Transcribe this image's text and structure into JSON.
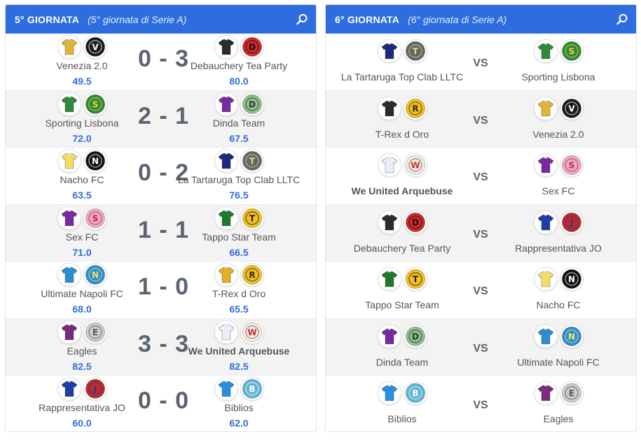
{
  "round5": {
    "title": "5° GIORNATA",
    "subtitle": "(5° giornata di Serie A)",
    "matches": [
      {
        "home": {
          "name": "Venezia 2.0",
          "points": "49.5",
          "shirt": "#e0b53a",
          "logo": "venezia"
        },
        "score": "0 - 3",
        "away": {
          "name": "Debauchery Tea Party",
          "points": "80.0",
          "shirt": "#2b2b2b",
          "logo": "debauchery"
        }
      },
      {
        "home": {
          "name": "Sporting Lisbona",
          "points": "72.0",
          "shirt": "#2f8a3a",
          "logo": "sporting"
        },
        "score": "2 - 1",
        "away": {
          "name": "Dinda Team",
          "points": "67.5",
          "shirt": "#7a2aa0",
          "logo": "dinda"
        }
      },
      {
        "home": {
          "name": "Nacho FC",
          "points": "63.5",
          "shirt": "#f2dc6a",
          "logo": "nacho"
        },
        "score": "0 - 2",
        "away": {
          "name": "La Tartaruga Top Clab LLTC",
          "points": "76.5",
          "shirt": "#1b2a7a",
          "logo": "tartaruga"
        }
      },
      {
        "home": {
          "name": "Sex FC",
          "points": "71.0",
          "shirt": "#7a2aa0",
          "logo": "sexfc"
        },
        "score": "1 - 1",
        "away": {
          "name": "Tappo Star Team",
          "points": "66.5",
          "shirt": "#1e7a2a",
          "logo": "tappo"
        }
      },
      {
        "home": {
          "name": "Ultimate Napoli FC",
          "points": "68.0",
          "shirt": "#2a8fd1",
          "logo": "napoli"
        },
        "score": "1 - 0",
        "away": {
          "name": "T-Rex d Oro",
          "points": "65.5",
          "shirt": "#e1b020",
          "logo": "trex"
        }
      },
      {
        "home": {
          "name": "Eagles",
          "points": "82.5",
          "shirt": "#7a2a80",
          "logo": "eagles"
        },
        "score": "3 - 3",
        "away": {
          "name": "We United Arquebuse",
          "points": "82.5",
          "shirt": "#eaeef8",
          "logo": "weunited",
          "bold": true
        }
      },
      {
        "home": {
          "name": "Rappresentativa JO",
          "points": "60.0",
          "shirt": "#1b3ea8",
          "logo": "jo"
        },
        "score": "0 - 0",
        "away": {
          "name": "Biblios",
          "points": "62.0",
          "shirt": "#2a8fe0",
          "logo": "biblios"
        }
      }
    ]
  },
  "round6": {
    "title": "6° GIORNATA",
    "subtitle": "(6° giornata di Serie A)",
    "vs_label": "VS",
    "matches": [
      {
        "home": {
          "name": "La Tartaruga Top Clab LLTC",
          "shirt": "#1b2a7a",
          "logo": "tartaruga"
        },
        "away": {
          "name": "Sporting Lisbona",
          "shirt": "#2f8a3a",
          "logo": "sporting"
        }
      },
      {
        "home": {
          "name": "T-Rex d Oro",
          "shirt": "#2b2b2b",
          "logo": "trex"
        },
        "away": {
          "name": "Venezia 2.0",
          "shirt": "#e0b53a",
          "logo": "venezia"
        }
      },
      {
        "home": {
          "name": "We United Arquebuse",
          "shirt": "#eaeef8",
          "logo": "weunited",
          "bold": true
        },
        "away": {
          "name": "Sex FC",
          "shirt": "#7a2aa0",
          "logo": "sexfc"
        }
      },
      {
        "home": {
          "name": "Debauchery Tea Party",
          "shirt": "#2b2b2b",
          "logo": "debauchery"
        },
        "away": {
          "name": "Rappresentativa JO",
          "shirt": "#1b3ea8",
          "logo": "jo"
        }
      },
      {
        "home": {
          "name": "Tappo Star Team",
          "shirt": "#1e7a2a",
          "logo": "tappo"
        },
        "away": {
          "name": "Nacho FC",
          "shirt": "#f2dc6a",
          "logo": "nacho"
        }
      },
      {
        "home": {
          "name": "Dinda Team",
          "shirt": "#7a2aa0",
          "logo": "dinda"
        },
        "away": {
          "name": "Ultimate Napoli FC",
          "shirt": "#2a8fd1",
          "logo": "napoli"
        }
      },
      {
        "home": {
          "name": "Biblios",
          "shirt": "#2a8fe0",
          "logo": "biblios"
        },
        "away": {
          "name": "Eagles",
          "shirt": "#7a2a80",
          "logo": "eagles"
        }
      }
    ]
  },
  "colors": {
    "header": "#2d6de0",
    "points": "#2f6fd6",
    "score": "#5b6470"
  }
}
